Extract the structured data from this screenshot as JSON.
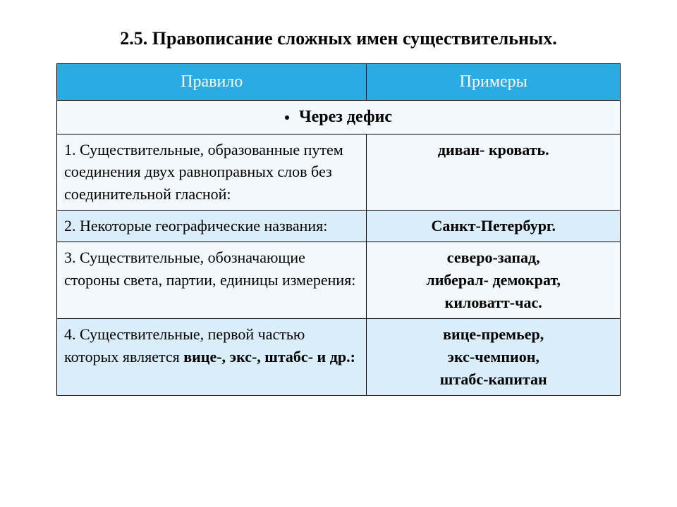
{
  "title": "2.5. Правописание сложных имен существительных.",
  "colors": {
    "header_bg": "#2aace2",
    "header_text": "#ffffff",
    "row_a": "#f2f8fc",
    "row_b": "#d9eefa",
    "border": "#000000",
    "text": "#000000"
  },
  "columns": {
    "rule": "Правило",
    "examples": "Примеры"
  },
  "section_label": "Через дефис",
  "rows": [
    {
      "rule": "1. Существительные, образованные путем соединения двух равноправных слов без соединительной гласной:",
      "examples": [
        "диван- кровать."
      ]
    },
    {
      "rule": "2. Некоторые географические названия:",
      "examples": [
        "Санкт-Петербург."
      ]
    },
    {
      "rule": "3. Существительные, обозначающие стороны света, партии, единицы измерения:",
      "examples": [
        "северо-запад,",
        "либерал- демократ,",
        "киловатт-час."
      ]
    },
    {
      "rule_prefix": "4. Существительные, первой частью которых  является ",
      "rule_bold": "вице-, экс-, штабс- и др.:",
      "examples": [
        "вице-премьер,",
        "экс-чемпион,",
        "штабс-капитан"
      ]
    }
  ],
  "fonts": {
    "title_size": 26,
    "header_size": 24,
    "body_size": 22
  }
}
